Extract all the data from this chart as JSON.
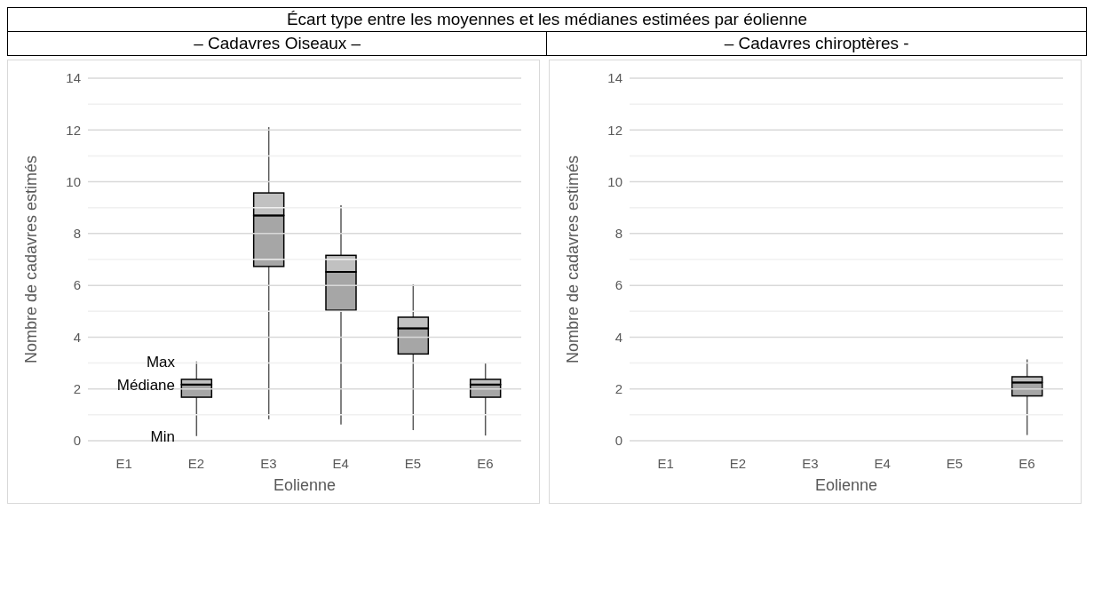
{
  "chart_data": [
    {
      "type": "box",
      "title": "Écart type entre les moyennes et les médianes estimées par éolienne",
      "subtitle": "– Cadavres Oiseaux –",
      "xlabel": "Eolienne",
      "ylabel": "Nombre de cadavres estimés",
      "categories": [
        "E1",
        "E2",
        "E3",
        "E4",
        "E5",
        "E6"
      ],
      "series": [
        {
          "color": "#a6a6a6",
          "boxes": [
            null,
            {
              "low": 0.18,
              "q1": 1.68,
              "median": 2.17,
              "q3": 2.37,
              "high": 3.06
            },
            {
              "low": 0.83,
              "q1": 6.73,
              "median": 8.7,
              "q3": 9.57,
              "high": 12.11
            },
            {
              "low": 0.63,
              "q1": 5.04,
              "median": 6.52,
              "q3": 7.16,
              "high": 9.09
            },
            {
              "low": 0.41,
              "q1": 3.35,
              "median": 4.34,
              "q3": 4.77,
              "high": 6.04
            },
            {
              "low": 0.2,
              "q1": 1.68,
              "median": 2.17,
              "q3": 2.37,
              "high": 3.01
            }
          ]
        }
      ],
      "ylim": [
        0,
        14
      ],
      "yticks": [
        0,
        {
          "value": 1,
          "label": null
        },
        2,
        {
          "value": 3,
          "label": null
        },
        4,
        {
          "value": 5,
          "label": null
        },
        6,
        {
          "value": 7,
          "label": null
        },
        8,
        {
          "value": 9,
          "label": null
        },
        10,
        {
          "value": 11,
          "label": null
        },
        12,
        {
          "value": 13,
          "label": null
        },
        14
      ],
      "grid": "y",
      "annotations": [
        {
          "text": "Max",
          "x": "E2",
          "y": 3.06
        },
        {
          "text": "Médiane",
          "x": "E2",
          "y": 2.17
        },
        {
          "text": "Min",
          "x": "E2",
          "y": 0.18
        }
      ]
    },
    {
      "type": "box",
      "subtitle": "– Cadavres chiroptères -",
      "xlabel": "Eolienne",
      "ylabel": "Nombre de cadavres estimés",
      "categories": [
        "E1",
        "E2",
        "E3",
        "E4",
        "E5",
        "E6"
      ],
      "series": [
        {
          "color": "#a6a6a6",
          "boxes": [
            null,
            null,
            null,
            null,
            null,
            {
              "low": 0.22,
              "q1": 1.73,
              "median": 2.25,
              "q3": 2.47,
              "high": 3.14
            }
          ]
        }
      ],
      "ylim": [
        0,
        14
      ],
      "yticks": [
        0,
        {
          "value": 1,
          "label": null
        },
        2,
        {
          "value": 3,
          "label": null
        },
        4,
        {
          "value": 5,
          "label": null
        },
        6,
        {
          "value": 7,
          "label": null
        },
        8,
        {
          "value": 9,
          "label": null
        },
        10,
        {
          "value": 11,
          "label": null
        },
        12,
        {
          "value": 13,
          "label": null
        },
        14
      ],
      "grid": "y"
    }
  ]
}
